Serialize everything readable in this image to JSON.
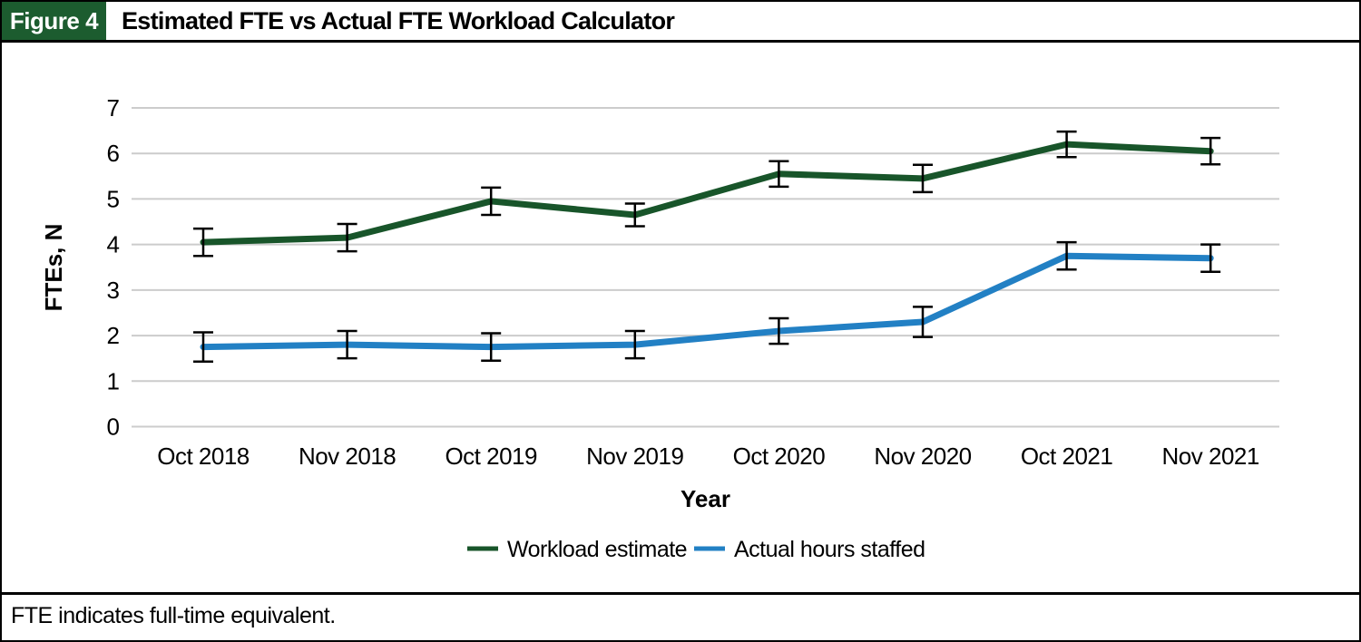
{
  "figure": {
    "label": "Figure 4",
    "title": "Estimated FTE vs Actual FTE Workload Calculator",
    "footnote": "FTE indicates full-time equivalent."
  },
  "colors": {
    "figure_label_bg": "#1c5c2f",
    "green": "#18552a",
    "blue": "#2280c4",
    "grid": "#cccccc",
    "error_bar": "#000000",
    "text": "#000000"
  },
  "chart_data": {
    "type": "line",
    "title": "Estimated FTE vs Actual FTE Workload Calculator",
    "categories": [
      "Oct 2018",
      "Nov 2018",
      "Oct 2019",
      "Nov 2019",
      "Oct 2020",
      "Nov 2020",
      "Oct 2021",
      "Nov 2021"
    ],
    "series": [
      {
        "name": "Workload estimate",
        "color_key": "green",
        "values": [
          4.05,
          4.15,
          4.95,
          4.65,
          5.55,
          5.45,
          6.2,
          6.05
        ],
        "errors": [
          0.3,
          0.3,
          0.3,
          0.25,
          0.28,
          0.3,
          0.28,
          0.29
        ]
      },
      {
        "name": "Actual hours staffed",
        "color_key": "blue",
        "values": [
          1.75,
          1.8,
          1.75,
          1.8,
          2.1,
          2.3,
          3.75,
          3.7
        ],
        "errors": [
          0.32,
          0.3,
          0.3,
          0.3,
          0.28,
          0.33,
          0.3,
          0.3
        ]
      }
    ],
    "xlabel": "Year",
    "ylabel": "FTEs, N",
    "ylim": [
      0,
      7
    ],
    "yticks": [
      0,
      1,
      2,
      3,
      4,
      5,
      6,
      7
    ],
    "grid": true,
    "error_bars": true,
    "legend_position": "bottom"
  }
}
